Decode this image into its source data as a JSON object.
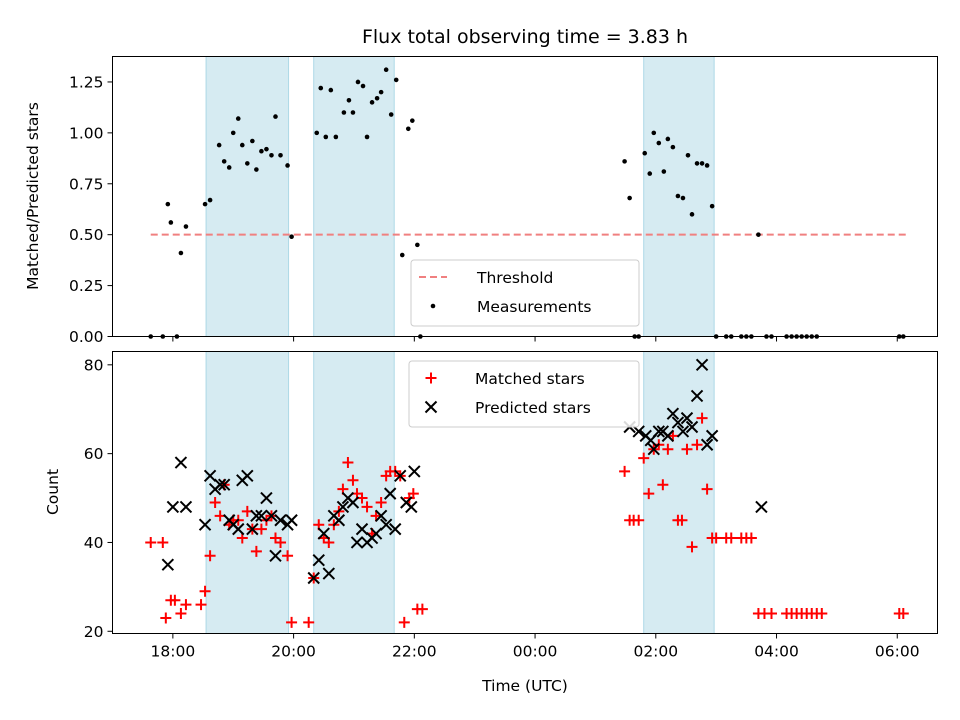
{
  "chart_data": [
    {
      "type": "scatter",
      "title": "Flux total observing time = 3.83 h",
      "xlabel": "",
      "ylabel": "Matched/Predicted stars",
      "xlim": [
        "17:00",
        "06:40"
      ],
      "ylim": [
        0,
        1.375
      ],
      "yticks": [
        "0.00",
        "0.25",
        "0.50",
        "0.75",
        "1.00",
        "1.25"
      ],
      "xticks": [
        "18:00",
        "20:00",
        "22:00",
        "00:00",
        "02:00",
        "04:00",
        "06:00"
      ],
      "legend_position": "lower center",
      "grid": false,
      "shaded_intervals": [
        [
          "18:33",
          "19:55"
        ],
        [
          "20:20",
          "21:40"
        ],
        [
          "01:48",
          "02:58"
        ]
      ],
      "threshold": {
        "name": "Threshold",
        "value": 0.5,
        "x_range": [
          "17:38",
          "06:10"
        ],
        "color": "#f08080",
        "style": "dashed"
      },
      "series": [
        {
          "name": "Measurements",
          "marker": "dot",
          "color": "#000000",
          "points": [
            [
              "17:38",
              0.0
            ],
            [
              "17:50",
              0.0
            ],
            [
              "17:55",
              0.65
            ],
            [
              "17:58",
              0.56
            ],
            [
              "18:04",
              0.0
            ],
            [
              "18:08",
              0.41
            ],
            [
              "18:13",
              0.54
            ],
            [
              "18:32",
              0.65
            ],
            [
              "18:37",
              0.67
            ],
            [
              "18:46",
              0.94
            ],
            [
              "18:51",
              0.86
            ],
            [
              "18:56",
              0.83
            ],
            [
              "19:00",
              1.0
            ],
            [
              "19:05",
              1.07
            ],
            [
              "19:09",
              0.94
            ],
            [
              "19:14",
              0.85
            ],
            [
              "19:19",
              0.96
            ],
            [
              "19:23",
              0.82
            ],
            [
              "19:28",
              0.91
            ],
            [
              "19:33",
              0.92
            ],
            [
              "19:38",
              0.89
            ],
            [
              "19:42",
              1.08
            ],
            [
              "19:47",
              0.89
            ],
            [
              "19:54",
              0.84
            ],
            [
              "19:58",
              0.49
            ],
            [
              "20:23",
              1.0
            ],
            [
              "20:27",
              1.22
            ],
            [
              "20:32",
              0.98
            ],
            [
              "20:37",
              1.21
            ],
            [
              "20:42",
              0.98
            ],
            [
              "20:50",
              1.1
            ],
            [
              "20:55",
              1.16
            ],
            [
              "20:59",
              1.1
            ],
            [
              "21:04",
              1.25
            ],
            [
              "21:09",
              1.23
            ],
            [
              "21:13",
              0.98
            ],
            [
              "21:18",
              1.15
            ],
            [
              "21:23",
              1.17
            ],
            [
              "21:27",
              1.2
            ],
            [
              "21:32",
              1.31
            ],
            [
              "21:37",
              1.09
            ],
            [
              "21:42",
              1.26
            ],
            [
              "21:48",
              0.4
            ],
            [
              "21:54",
              1.02
            ],
            [
              "21:58",
              1.06
            ],
            [
              "22:03",
              0.45
            ],
            [
              "22:06",
              0.0
            ],
            [
              "01:29",
              0.86
            ],
            [
              "01:34",
              0.68
            ],
            [
              "01:39",
              0.0
            ],
            [
              "01:43",
              0.0
            ],
            [
              "01:49",
              0.9
            ],
            [
              "01:54",
              0.8
            ],
            [
              "01:58",
              1.0
            ],
            [
              "02:03",
              0.95
            ],
            [
              "02:08",
              0.81
            ],
            [
              "02:12",
              0.97
            ],
            [
              "02:17",
              0.93
            ],
            [
              "02:22",
              0.69
            ],
            [
              "02:27",
              0.68
            ],
            [
              "02:32",
              0.89
            ],
            [
              "02:36",
              0.6
            ],
            [
              "02:41",
              0.85
            ],
            [
              "02:46",
              0.85
            ],
            [
              "02:51",
              0.84
            ],
            [
              "02:56",
              0.64
            ],
            [
              "03:00",
              0.0
            ],
            [
              "03:10",
              0.0
            ],
            [
              "03:15",
              0.0
            ],
            [
              "03:25",
              0.0
            ],
            [
              "03:30",
              0.0
            ],
            [
              "03:35",
              0.0
            ],
            [
              "03:42",
              0.5
            ],
            [
              "03:50",
              0.0
            ],
            [
              "03:55",
              0.0
            ],
            [
              "04:10",
              0.0
            ],
            [
              "04:15",
              0.0
            ],
            [
              "04:20",
              0.0
            ],
            [
              "04:25",
              0.0
            ],
            [
              "04:30",
              0.0
            ],
            [
              "04:35",
              0.0
            ],
            [
              "04:40",
              0.0
            ],
            [
              "06:02",
              0.0
            ],
            [
              "06:06",
              0.0
            ]
          ]
        }
      ]
    },
    {
      "type": "scatter",
      "title": "",
      "xlabel": "Time (UTC)",
      "ylabel": "Count",
      "xlim": [
        "17:00",
        "06:40"
      ],
      "ylim": [
        19.5,
        83
      ],
      "yticks": [
        "20",
        "40",
        "60",
        "80"
      ],
      "xticks": [
        "18:00",
        "20:00",
        "22:00",
        "00:00",
        "02:00",
        "04:00",
        "06:00"
      ],
      "legend_position": "upper center",
      "grid": false,
      "shaded_intervals": [
        [
          "18:33",
          "19:55"
        ],
        [
          "20:20",
          "21:40"
        ],
        [
          "01:48",
          "02:58"
        ]
      ],
      "series": [
        {
          "name": "Matched stars",
          "marker": "plus",
          "color": "#ff0000",
          "points": [
            [
              "17:38",
              40
            ],
            [
              "17:50",
              40
            ],
            [
              "17:53",
              23
            ],
            [
              "17:58",
              27
            ],
            [
              "18:02",
              27
            ],
            [
              "18:08",
              24
            ],
            [
              "18:13",
              26
            ],
            [
              "18:28",
              26
            ],
            [
              "18:32",
              29
            ],
            [
              "18:37",
              37
            ],
            [
              "18:42",
              49
            ],
            [
              "18:47",
              46
            ],
            [
              "18:51",
              53
            ],
            [
              "18:56",
              44
            ],
            [
              "19:00",
              45
            ],
            [
              "19:05",
              45
            ],
            [
              "19:09",
              41
            ],
            [
              "19:14",
              47
            ],
            [
              "19:19",
              43
            ],
            [
              "19:23",
              38
            ],
            [
              "19:28",
              43
            ],
            [
              "19:33",
              45
            ],
            [
              "19:38",
              46
            ],
            [
              "19:42",
              41
            ],
            [
              "19:47",
              40
            ],
            [
              "19:54",
              37
            ],
            [
              "19:58",
              22
            ],
            [
              "20:15",
              22
            ],
            [
              "20:20",
              32
            ],
            [
              "20:25",
              44
            ],
            [
              "20:30",
              41
            ],
            [
              "20:35",
              40
            ],
            [
              "20:40",
              44
            ],
            [
              "20:45",
              47
            ],
            [
              "20:49",
              52
            ],
            [
              "20:54",
              58
            ],
            [
              "20:59",
              54
            ],
            [
              "21:03",
              51
            ],
            [
              "21:08",
              50
            ],
            [
              "21:13",
              48
            ],
            [
              "21:18",
              42
            ],
            [
              "21:22",
              46
            ],
            [
              "21:27",
              49
            ],
            [
              "21:32",
              55
            ],
            [
              "21:36",
              56
            ],
            [
              "21:41",
              56
            ],
            [
              "21:46",
              55
            ],
            [
              "21:50",
              22
            ],
            [
              "21:55",
              50
            ],
            [
              "21:59",
              51
            ],
            [
              "22:03",
              25
            ],
            [
              "22:08",
              25
            ],
            [
              "01:29",
              56
            ],
            [
              "01:34",
              45
            ],
            [
              "01:38",
              45
            ],
            [
              "01:43",
              45
            ],
            [
              "01:48",
              59
            ],
            [
              "01:53",
              51
            ],
            [
              "01:58",
              61
            ],
            [
              "02:03",
              62
            ],
            [
              "02:07",
              53
            ],
            [
              "02:12",
              61
            ],
            [
              "02:17",
              64
            ],
            [
              "02:22",
              45
            ],
            [
              "02:26",
              45
            ],
            [
              "02:31",
              61
            ],
            [
              "02:36",
              39
            ],
            [
              "02:41",
              62
            ],
            [
              "02:46",
              68
            ],
            [
              "02:51",
              52
            ],
            [
              "02:56",
              41
            ],
            [
              "03:00",
              41
            ],
            [
              "03:10",
              41
            ],
            [
              "03:15",
              41
            ],
            [
              "03:25",
              41
            ],
            [
              "03:30",
              41
            ],
            [
              "03:35",
              41
            ],
            [
              "03:42",
              24
            ],
            [
              "03:48",
              24
            ],
            [
              "03:55",
              24
            ],
            [
              "04:10",
              24
            ],
            [
              "04:15",
              24
            ],
            [
              "04:20",
              24
            ],
            [
              "04:25",
              24
            ],
            [
              "04:30",
              24
            ],
            [
              "04:35",
              24
            ],
            [
              "04:40",
              24
            ],
            [
              "04:45",
              24
            ],
            [
              "06:02",
              24
            ],
            [
              "06:06",
              24
            ]
          ]
        },
        {
          "name": "Predicted stars",
          "marker": "x",
          "color": "#000000",
          "points": [
            [
              "17:55",
              35
            ],
            [
              "18:00",
              48
            ],
            [
              "18:08",
              58
            ],
            [
              "18:13",
              48
            ],
            [
              "18:32",
              44
            ],
            [
              "18:37",
              55
            ],
            [
              "18:42",
              52
            ],
            [
              "18:47",
              53
            ],
            [
              "18:51",
              53
            ],
            [
              "18:56",
              45
            ],
            [
              "19:00",
              44
            ],
            [
              "19:05",
              43
            ],
            [
              "19:09",
              54
            ],
            [
              "19:14",
              55
            ],
            [
              "19:19",
              43
            ],
            [
              "19:23",
              46
            ],
            [
              "19:28",
              46
            ],
            [
              "19:33",
              50
            ],
            [
              "19:38",
              46
            ],
            [
              "19:42",
              37
            ],
            [
              "19:47",
              45
            ],
            [
              "19:54",
              44
            ],
            [
              "19:58",
              45
            ],
            [
              "20:20",
              32
            ],
            [
              "20:25",
              36
            ],
            [
              "20:30",
              42
            ],
            [
              "20:35",
              33
            ],
            [
              "20:40",
              46
            ],
            [
              "20:45",
              45
            ],
            [
              "20:49",
              48
            ],
            [
              "20:54",
              50
            ],
            [
              "20:59",
              49
            ],
            [
              "21:03",
              40
            ],
            [
              "21:08",
              43
            ],
            [
              "21:13",
              40
            ],
            [
              "21:18",
              41
            ],
            [
              "21:22",
              42
            ],
            [
              "21:27",
              46
            ],
            [
              "21:32",
              44
            ],
            [
              "21:36",
              51
            ],
            [
              "21:41",
              43
            ],
            [
              "21:46",
              55
            ],
            [
              "21:52",
              49
            ],
            [
              "21:57",
              48
            ],
            [
              "22:00",
              56
            ],
            [
              "01:34",
              66
            ],
            [
              "01:43",
              65
            ],
            [
              "01:50",
              64
            ],
            [
              "01:55",
              63
            ],
            [
              "01:58",
              61
            ],
            [
              "02:03",
              65
            ],
            [
              "02:07",
              65
            ],
            [
              "02:12",
              64
            ],
            [
              "02:17",
              69
            ],
            [
              "02:22",
              67
            ],
            [
              "02:27",
              65
            ],
            [
              "02:31",
              68
            ],
            [
              "02:36",
              66
            ],
            [
              "02:41",
              73
            ],
            [
              "02:46",
              80
            ],
            [
              "02:51",
              62
            ],
            [
              "02:56",
              64
            ],
            [
              "03:45",
              48
            ]
          ]
        }
      ]
    }
  ]
}
